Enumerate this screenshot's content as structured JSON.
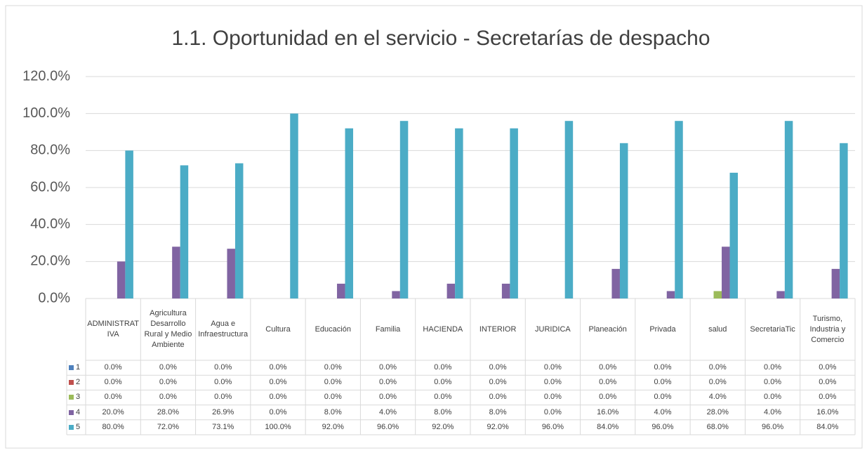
{
  "chart_data": {
    "type": "bar",
    "title": "1.1. Oportunidad en el servicio - Secretarías de despacho",
    "categories": [
      "ADMINISTRATIVA",
      "Agricultura Desarrollo Rural y Medio Ambiente",
      "Agua e Infraestructura",
      "Cultura",
      "Educación",
      "Familia",
      "HACIENDA",
      "INTERIOR",
      "JURIDICA",
      "Planeación",
      "Privada",
      "salud",
      "SecretariaTic",
      "Turismo, Industria y Comercio"
    ],
    "series": [
      {
        "name": "1",
        "color": "#4f81bd",
        "values": [
          0,
          0,
          0,
          0,
          0,
          0,
          0,
          0,
          0,
          0,
          0,
          0,
          0,
          0
        ],
        "value_labels": [
          "0.0%",
          "0.0%",
          "0.0%",
          "0.0%",
          "0.0%",
          "0.0%",
          "0.0%",
          "0.0%",
          "0.0%",
          "0.0%",
          "0.0%",
          "0.0%",
          "0.0%",
          "0.0%"
        ]
      },
      {
        "name": "2",
        "color": "#c0504d",
        "values": [
          0,
          0,
          0,
          0,
          0,
          0,
          0,
          0,
          0,
          0,
          0,
          0,
          0,
          0
        ],
        "value_labels": [
          "0.0%",
          "0.0%",
          "0.0%",
          "0.0%",
          "0.0%",
          "0.0%",
          "0.0%",
          "0.0%",
          "0.0%",
          "0.0%",
          "0.0%",
          "0.0%",
          "0.0%",
          "0.0%"
        ]
      },
      {
        "name": "3",
        "color": "#9bbb59",
        "values": [
          0,
          0,
          0,
          0,
          0,
          0,
          0,
          0,
          0,
          0,
          0,
          4,
          0,
          0
        ],
        "value_labels": [
          "0.0%",
          "0.0%",
          "0.0%",
          "0.0%",
          "0.0%",
          "0.0%",
          "0.0%",
          "0.0%",
          "0.0%",
          "0.0%",
          "0.0%",
          "4.0%",
          "0.0%",
          "0.0%"
        ]
      },
      {
        "name": "4",
        "color": "#8064a2",
        "values": [
          20,
          28,
          26.9,
          0,
          8,
          4,
          8,
          8,
          0,
          16,
          4,
          28,
          4,
          16
        ],
        "value_labels": [
          "20.0%",
          "28.0%",
          "26.9%",
          "0.0%",
          "8.0%",
          "4.0%",
          "8.0%",
          "8.0%",
          "0.0%",
          "16.0%",
          "4.0%",
          "28.0%",
          "4.0%",
          "16.0%"
        ]
      },
      {
        "name": "5",
        "color": "#4bacc6",
        "values": [
          80,
          72,
          73.1,
          100,
          92,
          96,
          92,
          92,
          96,
          84,
          96,
          68,
          96,
          84
        ],
        "value_labels": [
          "80.0%",
          "72.0%",
          "73.1%",
          "100.0%",
          "92.0%",
          "96.0%",
          "92.0%",
          "92.0%",
          "96.0%",
          "84.0%",
          "96.0%",
          "68.0%",
          "96.0%",
          "84.0%"
        ]
      }
    ],
    "ylim": [
      0,
      120
    ],
    "yticks": [
      {
        "value": 0,
        "label": "0.0%"
      },
      {
        "value": 20,
        "label": "20.0%"
      },
      {
        "value": 40,
        "label": "40.0%"
      },
      {
        "value": 60,
        "label": "60.0%"
      },
      {
        "value": 80,
        "label": "80.0%"
      },
      {
        "value": 100,
        "label": "100.0%"
      },
      {
        "value": 120,
        "label": "120.0%"
      }
    ],
    "grid": true
  }
}
